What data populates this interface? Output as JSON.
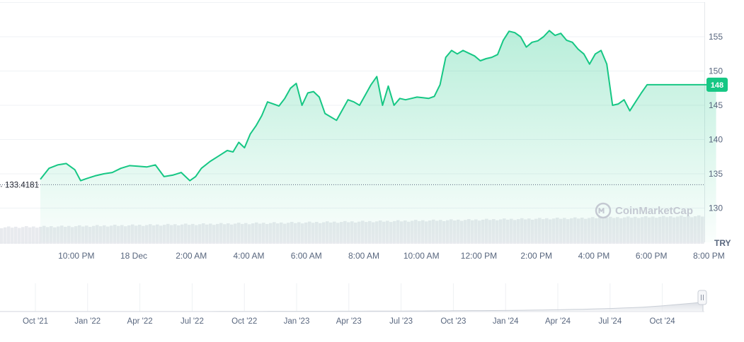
{
  "colors": {
    "line": "#16c784",
    "area_top": "#16c784",
    "grid": "#eff2f5",
    "axis_text": "#58667e",
    "volume": "#e8eaee",
    "watermark": "#c4c9d2",
    "badge_bg": "#16c784"
  },
  "watermark": {
    "text": "CoinMarketCap",
    "icon": "coinmarketcap-logo-icon"
  },
  "navigator_handle_icon": "drag-handle-icon",
  "chart_data": {
    "type": "area",
    "currency_unit": "TRY",
    "reference_line": {
      "value": 133.4181,
      "label": "133.4181",
      "style": "dotted"
    },
    "current_value_badge": {
      "value": 148,
      "label": "148"
    },
    "ylim": [
      125,
      160
    ],
    "y_ticks": [
      130,
      135,
      140,
      145,
      150,
      155
    ],
    "y_tick_labels": [
      "130",
      "135",
      "140",
      "145",
      "150",
      "155"
    ],
    "x_tick_labels": [
      "10:00 PM",
      "18 Dec",
      "2:00 AM",
      "4:00 AM",
      "6:00 AM",
      "8:00 AM",
      "10:00 AM",
      "12:00 PM",
      "2:00 PM",
      "4:00 PM",
      "6:00 PM",
      "8:00 PM"
    ],
    "x_tick_hours": [
      1.25,
      3.25,
      5.25,
      7.25,
      9.25,
      11.25,
      13.25,
      15.25,
      17.25,
      19.25,
      21.25,
      23.25
    ],
    "x_range_hours": [
      0,
      23.6
    ],
    "series": [
      {
        "x_hours": [
          0.0,
          0.3,
          0.6,
          0.9,
          1.2,
          1.4,
          1.6,
          1.9,
          2.2,
          2.5,
          2.8,
          3.1,
          3.4,
          3.7,
          4.0,
          4.3,
          4.6,
          4.9,
          5.2,
          5.4,
          5.6,
          5.9,
          6.2,
          6.5,
          6.7,
          6.9,
          7.1,
          7.3,
          7.5,
          7.7,
          7.9,
          8.1,
          8.3,
          8.5,
          8.7,
          8.9,
          9.1,
          9.3,
          9.5,
          9.7,
          9.9,
          10.1,
          10.3,
          10.5,
          10.7,
          10.9,
          11.1,
          11.3,
          11.5,
          11.7,
          11.9,
          12.1,
          12.3,
          12.5,
          12.7,
          12.9,
          13.1,
          13.3,
          13.5,
          13.7,
          13.9,
          14.1,
          14.3,
          14.5,
          14.7,
          14.9,
          15.1,
          15.3,
          15.5,
          15.7,
          15.9,
          16.1,
          16.3,
          16.5,
          16.7,
          16.9,
          17.1,
          17.3,
          17.5,
          17.7,
          17.9,
          18.1,
          18.3,
          18.5,
          18.7,
          18.9,
          19.1,
          19.3,
          19.5,
          19.7,
          19.9,
          20.1,
          20.3,
          20.5,
          20.7,
          20.9,
          21.1,
          21.3,
          21.5,
          21.7,
          21.9,
          22.1,
          22.3,
          22.5,
          22.7,
          22.9,
          23.1,
          23.3,
          23.5
        ],
        "values": [
          134.2,
          135.8,
          136.3,
          136.5,
          135.6,
          134.0,
          134.3,
          134.7,
          135.0,
          135.2,
          135.8,
          136.2,
          136.1,
          136.0,
          136.3,
          134.6,
          134.8,
          135.2,
          134.0,
          134.6,
          135.8,
          136.8,
          137.6,
          138.4,
          138.2,
          139.6,
          138.8,
          140.8,
          142.0,
          143.5,
          145.5,
          145.2,
          144.9,
          146.0,
          147.5,
          148.2,
          145.0,
          146.8,
          147.0,
          146.2,
          143.8,
          143.3,
          142.8,
          144.3,
          145.8,
          145.5,
          145.0,
          146.5,
          148.0,
          149.2,
          145.0,
          147.8,
          145.0,
          146.0,
          145.8,
          146.0,
          146.2,
          146.1,
          146.0,
          146.3,
          148.0,
          152.0,
          153.0,
          152.5,
          153.0,
          152.6,
          152.2,
          151.5,
          151.8,
          152.0,
          152.4,
          154.5,
          155.8,
          155.6,
          155.0,
          153.5,
          154.2,
          154.4,
          155.0,
          155.9,
          155.2,
          155.5,
          154.5,
          154.2,
          153.2,
          152.5,
          151.0,
          152.5,
          153.0,
          151.0,
          145.0,
          145.2,
          145.8,
          144.2,
          145.5,
          146.8,
          148.0,
          148.0,
          148.0,
          148.0,
          148.0,
          148.0,
          148.0,
          148.0,
          148.0,
          148.0,
          148.0,
          148.0,
          148.0
        ]
      }
    ],
    "navigator": {
      "x_tick_labels": [
        "Oct '21",
        "Jan '22",
        "Apr '22",
        "Jul '22",
        "Oct '22",
        "Jan '23",
        "Apr '23",
        "Jul '23",
        "Oct '23",
        "Jan '24",
        "Apr '24",
        "Jul '24",
        "Oct '24"
      ],
      "values": [
        2,
        2,
        2,
        2,
        2,
        2,
        2,
        2,
        2,
        2,
        2,
        2,
        2,
        2,
        2,
        3,
        3,
        3,
        3,
        3,
        3,
        3,
        4,
        4,
        4,
        4,
        4,
        5,
        5,
        5,
        5,
        6,
        6,
        6,
        7,
        7,
        7,
        8,
        8,
        9,
        9,
        10,
        10,
        11,
        12,
        13,
        14,
        15,
        16,
        17,
        18,
        19,
        21,
        23,
        25,
        28,
        31,
        34,
        37,
        41,
        45,
        50,
        56,
        62,
        70,
        80,
        92,
        105,
        118,
        133,
        148
      ]
    }
  }
}
